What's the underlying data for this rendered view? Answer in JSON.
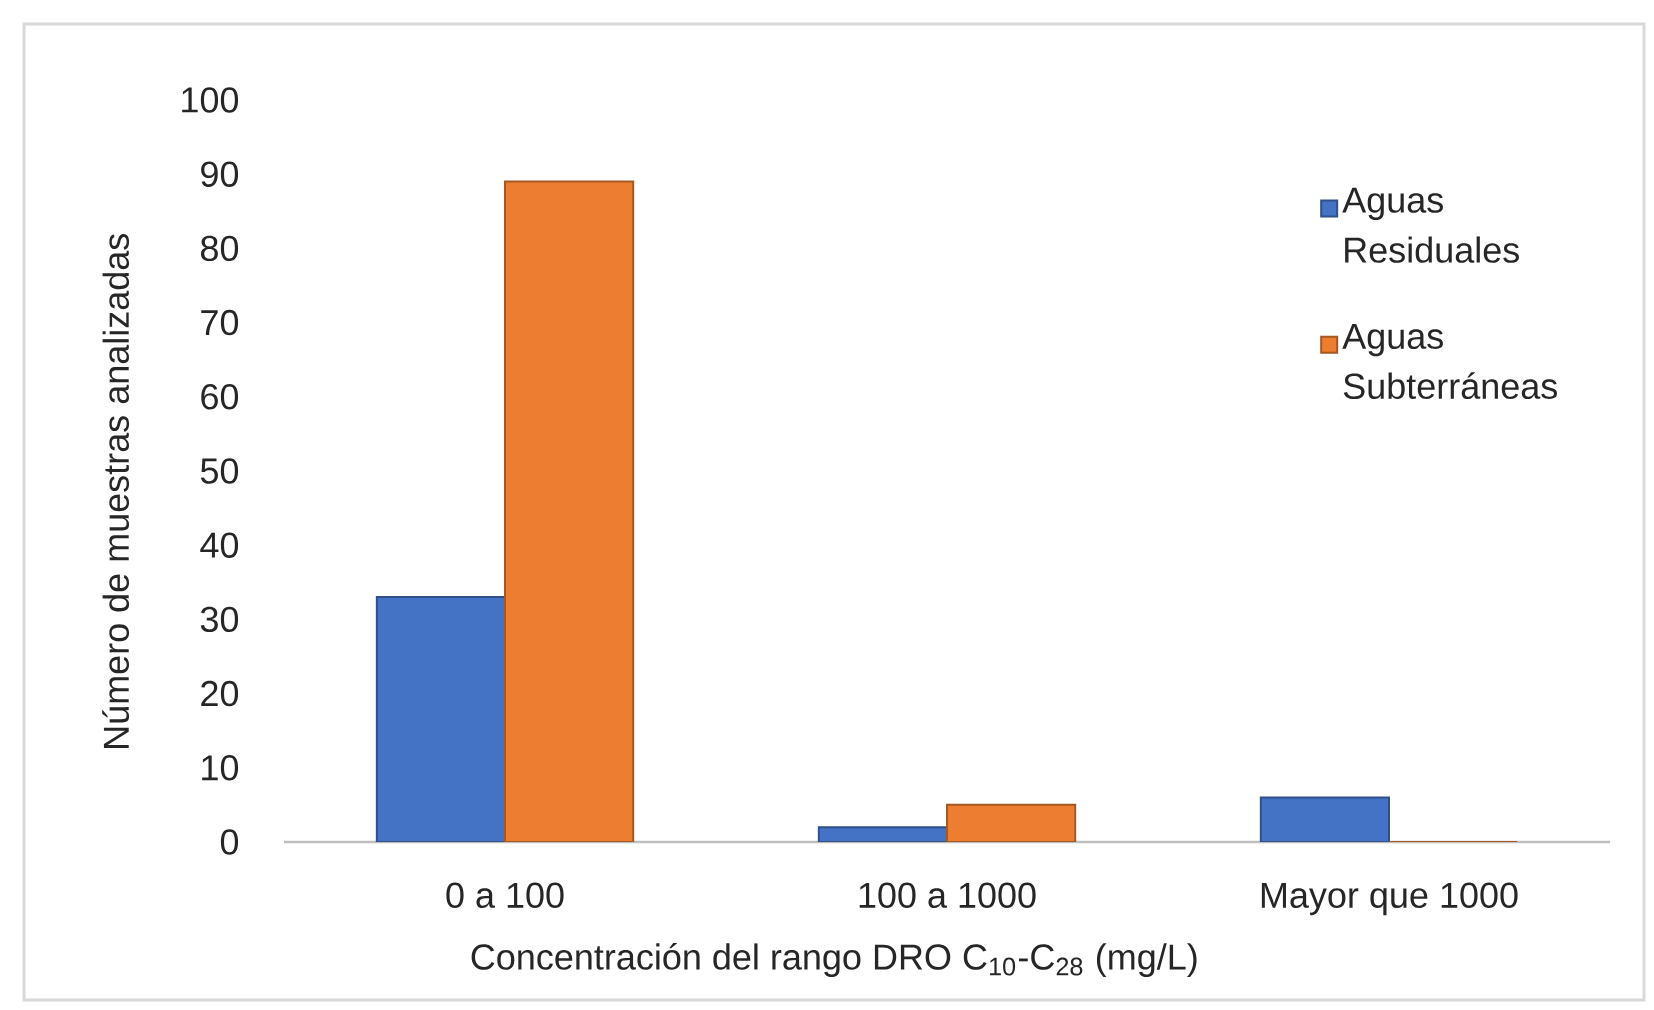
{
  "chart_data": {
    "type": "bar",
    "xlabel": "Concentración del rango DRO C$_{10}$-C$_{28}$ (mg/L)",
    "ylabel": "Número de muestras analizadas",
    "categories": [
      "0 a 100",
      "100 a 1000",
      "Mayor que 1000"
    ],
    "series": [
      {
        "name": "Aguas Residuales",
        "color": "#4472c4",
        "values": [
          33,
          2,
          6
        ]
      },
      {
        "name": "Aguas Subterráneas",
        "color": "#ed7d31",
        "values": [
          89,
          5,
          0
        ]
      }
    ],
    "ylim": [
      0,
      100
    ],
    "yticks": [
      0,
      10,
      20,
      30,
      40,
      50,
      60,
      70,
      80,
      90,
      100
    ],
    "legend": "top right"
  }
}
